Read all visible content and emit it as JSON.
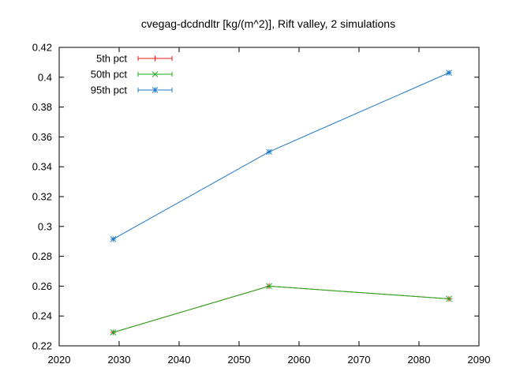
{
  "chart_data": {
    "type": "line",
    "title": "cvegag-dcdndltr [kg/(m^2)], Rift valley, 2 simulations",
    "xlabel": "",
    "ylabel": "",
    "xlim": [
      2020,
      2090
    ],
    "ylim": [
      0.22,
      0.42
    ],
    "xticks": [
      2020,
      2030,
      2040,
      2050,
      2060,
      2070,
      2080,
      2090
    ],
    "yticks": [
      0.22,
      0.24,
      0.26,
      0.28,
      0.3,
      0.32,
      0.34,
      0.36,
      0.38,
      0.4,
      0.42
    ],
    "x": [
      2029,
      2055,
      2085
    ],
    "grid": false,
    "legend_position": "top-left",
    "series": [
      {
        "name": "5th pct",
        "values": [
          0.229,
          0.26,
          0.2515
        ],
        "color": "#e41a1c",
        "marker": "plus"
      },
      {
        "name": "50th pct",
        "values": [
          0.229,
          0.26,
          0.2515
        ],
        "color": "#1aaf1a",
        "marker": "cross"
      },
      {
        "name": "95th pct",
        "values": [
          0.2915,
          0.35,
          0.403
        ],
        "color": "#1f78c8",
        "marker": "star"
      }
    ]
  }
}
